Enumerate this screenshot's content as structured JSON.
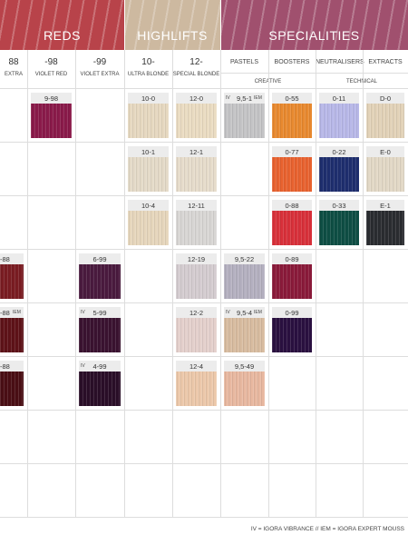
{
  "header": {
    "sections": [
      {
        "label": "REDS",
        "color": "#b8434a"
      },
      {
        "label": "HIGHLIFTS",
        "color": "#cdb9a0"
      },
      {
        "label": "SPECIALITIES",
        "color": "#a0506e"
      }
    ],
    "columns": [
      {
        "code": "88",
        "name": "EXTRA"
      },
      {
        "code": "-98",
        "name": "VIOLET RED"
      },
      {
        "code": "-99",
        "name": "VIOLET EXTRA"
      },
      {
        "code": "10-",
        "name": "ULTRA BLONDE"
      },
      {
        "code": "12-",
        "name": "SPECIAL BLONDE"
      },
      {
        "name": "PASTELS"
      },
      {
        "name": "BOOSTERS"
      },
      {
        "name": "NEUTRALISERS"
      },
      {
        "name": "EXTRACTS"
      }
    ],
    "subgroups": [
      {
        "label": "CREATIVE"
      },
      {
        "label": "TECHNICAL"
      }
    ]
  },
  "table": {
    "rows": [
      [
        null,
        {
          "label": "9-98",
          "color": "#8a1a4a"
        },
        null,
        {
          "label": "10-0",
          "color": "#e6d8c0"
        },
        {
          "label": "12-0",
          "color": "#eadcc2"
        },
        {
          "label": "9,5-1",
          "tag_left": "IV",
          "tag_right": "IEM",
          "color": "#c4c4c6"
        },
        {
          "label": "0-55",
          "color": "#e8892f"
        },
        {
          "label": "0-11",
          "color": "#b8b8e8"
        },
        {
          "label": "D-0",
          "color": "#e2d2b8"
        }
      ],
      [
        null,
        null,
        null,
        {
          "label": "10-1",
          "color": "#e4dac8"
        },
        {
          "label": "12-1",
          "color": "#e6dccb"
        },
        null,
        {
          "label": "0-77",
          "color": "#e8622f"
        },
        {
          "label": "0-22",
          "color": "#1e2e6e"
        },
        {
          "label": "E-0",
          "color": "#e2d8c6"
        }
      ],
      [
        null,
        null,
        null,
        {
          "label": "10-4",
          "color": "#e6d6bc"
        },
        {
          "label": "12-11",
          "color": "#d8d6d4"
        },
        null,
        {
          "label": "0-88",
          "color": "#d8303a"
        },
        {
          "label": "0-33",
          "color": "#0e4e44"
        },
        {
          "label": "E-1",
          "color": "#2a2c30"
        }
      ],
      [
        {
          "label": "-88",
          "color": "#7a1c22"
        },
        null,
        {
          "label": "6-99",
          "color": "#4a1a3e"
        },
        null,
        {
          "label": "12-19",
          "color": "#d4ccd0"
        },
        {
          "label": "9,5-22",
          "color": "#b4b0c0"
        },
        {
          "label": "0-89",
          "color": "#8a1a3a"
        },
        null,
        null
      ],
      [
        {
          "label": "-88",
          "tag_right": "IEM",
          "color": "#5e1218"
        },
        null,
        {
          "label": "5-99",
          "tag_left": "IV",
          "color": "#3a1230"
        },
        null,
        {
          "label": "12-2",
          "color": "#e4d0cc"
        },
        {
          "label": "9,5-4",
          "tag_left": "IV",
          "tag_right": "IEM",
          "color": "#d8bca0"
        },
        {
          "label": "0-99",
          "color": "#2a1040"
        },
        null,
        null
      ],
      [
        {
          "label": "-88",
          "color": "#4a0e14"
        },
        null,
        {
          "label": "4-99",
          "tag_left": "IV",
          "color": "#2a0e28"
        },
        null,
        {
          "label": "12-4",
          "color": "#ecc8aa"
        },
        {
          "label": "9,5-49",
          "color": "#e8b8a0"
        },
        null,
        null,
        null
      ],
      [
        null,
        null,
        null,
        null,
        null,
        null,
        null,
        null,
        null
      ],
      [
        null,
        null,
        null,
        null,
        null,
        null,
        null,
        null,
        null
      ]
    ]
  },
  "footer": {
    "legend": "IV = IGORA VIBRANCE // IEM = IGORA EXPERT MOUSS"
  }
}
